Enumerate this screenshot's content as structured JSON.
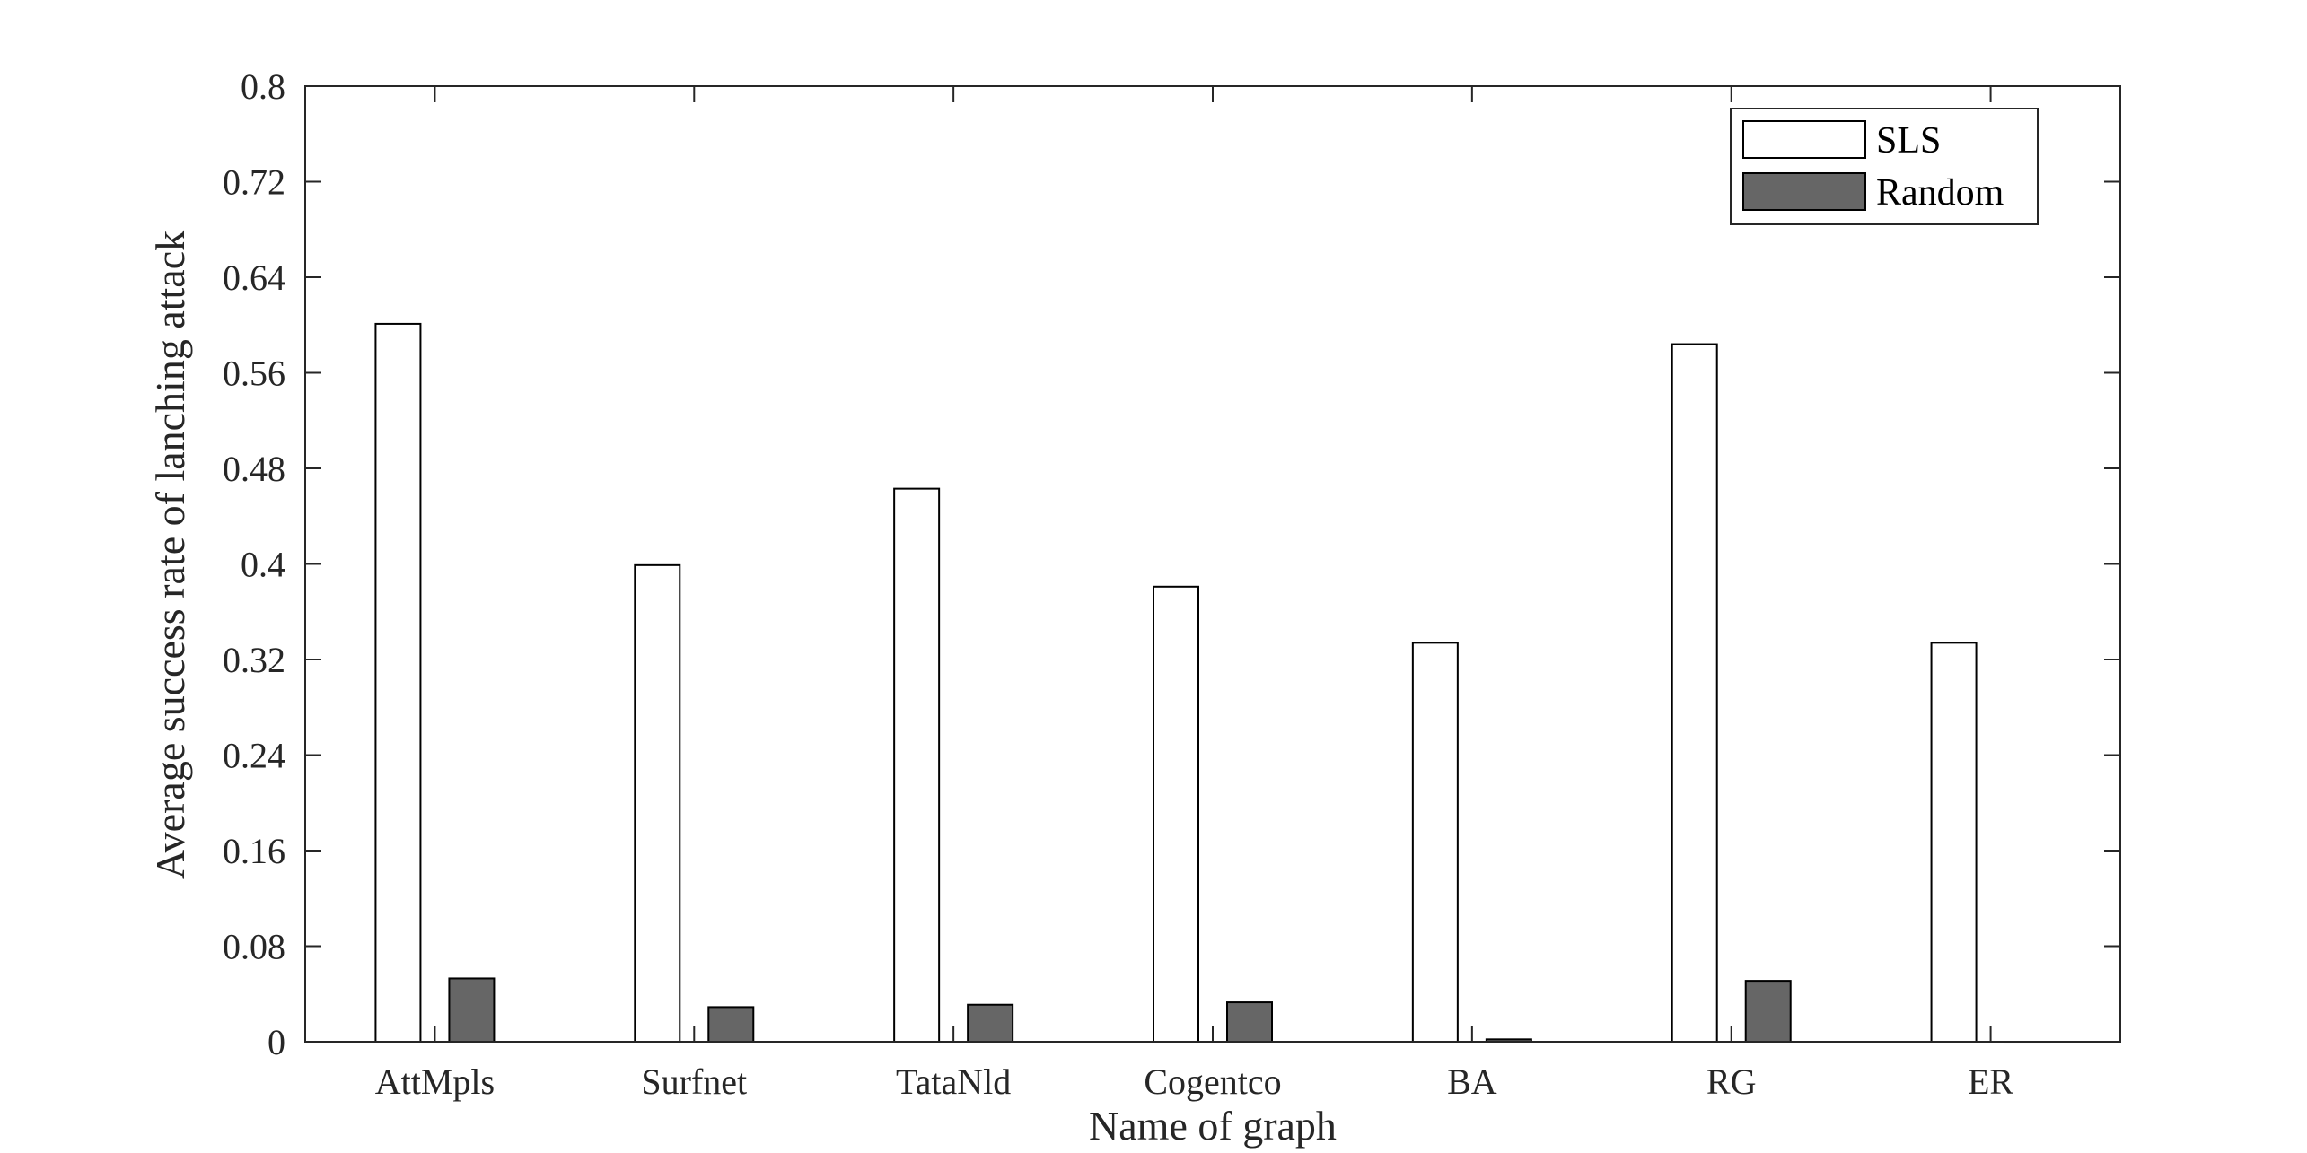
{
  "chart_data": {
    "type": "bar",
    "title": "",
    "xlabel": "Name of graph",
    "ylabel": "Average success rate of lanching attack",
    "categories": [
      "AttMpls",
      "Surfnet",
      "TataNld",
      "Cogentco",
      "BA",
      "RG",
      "ER"
    ],
    "series": [
      {
        "name": "SLS",
        "values": [
          0.601,
          0.399,
          0.463,
          0.381,
          0.334,
          0.584,
          0.334
        ],
        "color": "#ffffff"
      },
      {
        "name": "Random",
        "values": [
          0.053,
          0.029,
          0.031,
          0.033,
          0.002,
          0.051,
          0.0
        ],
        "color": "#666666"
      }
    ],
    "ylim": [
      0,
      0.8
    ],
    "yticks": [
      "0",
      "0.08",
      "0.16",
      "0.24",
      "0.32",
      "0.4",
      "0.48",
      "0.56",
      "0.64",
      "0.72",
      "0.8"
    ],
    "grid": false,
    "legend": "top-right"
  }
}
